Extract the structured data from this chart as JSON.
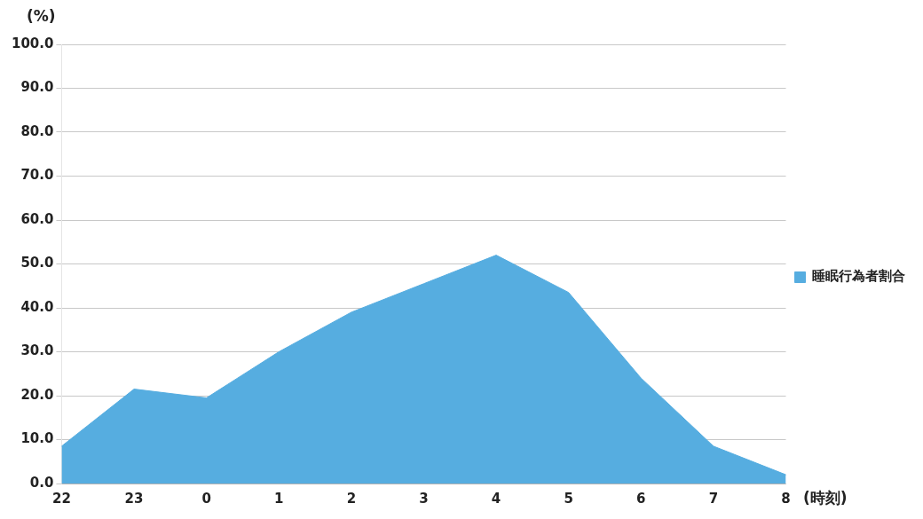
{
  "chart_data": {
    "type": "area",
    "ylabel": "(%)",
    "xlabel": "(時刻)",
    "categories": [
      "22",
      "23",
      "0",
      "1",
      "2",
      "3",
      "4",
      "5",
      "6",
      "7",
      "8"
    ],
    "series": [
      {
        "name": "睡眠行為者割合",
        "color": "#56ade0",
        "values": [
          8.5,
          21.5,
          19.5,
          30,
          39,
          45.5,
          52,
          43.5,
          24,
          8.5,
          2
        ]
      }
    ],
    "ylim": [
      0,
      100
    ],
    "yticks": [
      {
        "value": 0,
        "label": "0.0"
      },
      {
        "value": 10,
        "label": "10.0"
      },
      {
        "value": 20,
        "label": "20.0"
      },
      {
        "value": 30,
        "label": "30.0"
      },
      {
        "value": 40,
        "label": "40.0"
      },
      {
        "value": 50,
        "label": "50.0"
      },
      {
        "value": 60,
        "label": "60.0"
      },
      {
        "value": 70,
        "label": "70.0"
      },
      {
        "value": 80,
        "label": "80.0"
      },
      {
        "value": 90,
        "label": "90.0"
      },
      {
        "value": 100,
        "label": "100.0"
      }
    ],
    "grid": "y",
    "legend": "right"
  }
}
